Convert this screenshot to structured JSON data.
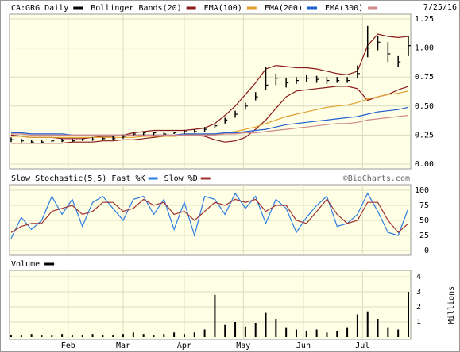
{
  "chart_data": [
    {
      "type": "ohlc",
      "title": "CA:GRG Daily",
      "date": "7/25/16",
      "color": "#000000",
      "high": [
        0.23,
        0.22,
        0.21,
        0.21,
        0.21,
        0.22,
        0.22,
        0.22,
        0.23,
        0.23,
        0.24,
        0.25,
        0.27,
        0.28,
        0.28,
        0.28,
        0.28,
        0.29,
        0.3,
        0.32,
        0.35,
        0.4,
        0.46,
        0.53,
        0.62,
        0.84,
        0.78,
        0.74,
        0.75,
        0.77,
        0.76,
        0.75,
        0.75,
        0.75,
        0.85,
        1.19,
        1.1,
        1.05,
        0.93,
        1.1
      ],
      "low": [
        0.19,
        0.18,
        0.18,
        0.18,
        0.19,
        0.19,
        0.19,
        0.2,
        0.2,
        0.21,
        0.21,
        0.22,
        0.24,
        0.25,
        0.25,
        0.25,
        0.26,
        0.26,
        0.27,
        0.28,
        0.31,
        0.35,
        0.4,
        0.47,
        0.55,
        0.64,
        0.68,
        0.66,
        0.69,
        0.71,
        0.7,
        0.69,
        0.7,
        0.7,
        0.74,
        0.92,
        0.98,
        0.88,
        0.84,
        0.93
      ],
      "close": [
        0.21,
        0.2,
        0.19,
        0.19,
        0.2,
        0.2,
        0.2,
        0.21,
        0.21,
        0.22,
        0.22,
        0.24,
        0.26,
        0.27,
        0.27,
        0.26,
        0.27,
        0.28,
        0.28,
        0.3,
        0.33,
        0.38,
        0.43,
        0.5,
        0.58,
        0.68,
        0.74,
        0.7,
        0.72,
        0.74,
        0.73,
        0.72,
        0.72,
        0.72,
        0.78,
        1.0,
        1.05,
        0.95,
        0.88,
        1.02
      ],
      "bands": {
        "name": "Bollinger Bands(20)",
        "color": "#8b1a1a",
        "upper": [
          0.25,
          0.24,
          0.23,
          0.23,
          0.23,
          0.22,
          0.22,
          0.22,
          0.23,
          0.24,
          0.24,
          0.25,
          0.27,
          0.28,
          0.29,
          0.29,
          0.29,
          0.29,
          0.3,
          0.31,
          0.35,
          0.42,
          0.5,
          0.6,
          0.7,
          0.82,
          0.85,
          0.84,
          0.83,
          0.83,
          0.82,
          0.8,
          0.78,
          0.77,
          0.8,
          1.02,
          1.12,
          1.1,
          1.09,
          1.1
        ],
        "lower": [
          0.18,
          0.18,
          0.18,
          0.18,
          0.18,
          0.18,
          0.19,
          0.19,
          0.19,
          0.2,
          0.2,
          0.21,
          0.21,
          0.22,
          0.23,
          0.24,
          0.24,
          0.25,
          0.25,
          0.24,
          0.21,
          0.19,
          0.2,
          0.23,
          0.3,
          0.38,
          0.48,
          0.58,
          0.63,
          0.64,
          0.65,
          0.66,
          0.67,
          0.67,
          0.65,
          0.55,
          0.58,
          0.6,
          0.64,
          0.67
        ]
      },
      "series": [
        {
          "name": "EMA(100)",
          "color": "#e0a030",
          "values": [
            0.24,
            0.24,
            0.23,
            0.23,
            0.23,
            0.23,
            0.23,
            0.23,
            0.23,
            0.23,
            0.23,
            0.23,
            0.23,
            0.24,
            0.24,
            0.24,
            0.24,
            0.25,
            0.25,
            0.25,
            0.26,
            0.27,
            0.28,
            0.3,
            0.32,
            0.35,
            0.38,
            0.41,
            0.43,
            0.45,
            0.47,
            0.49,
            0.5,
            0.51,
            0.53,
            0.56,
            0.58,
            0.6,
            0.61,
            0.63
          ]
        },
        {
          "name": "EMA(200)",
          "color": "#2060d0",
          "values": [
            0.27,
            0.27,
            0.26,
            0.26,
            0.26,
            0.26,
            0.25,
            0.25,
            0.25,
            0.25,
            0.25,
            0.25,
            0.25,
            0.25,
            0.25,
            0.25,
            0.25,
            0.26,
            0.26,
            0.26,
            0.26,
            0.27,
            0.27,
            0.28,
            0.29,
            0.3,
            0.32,
            0.34,
            0.35,
            0.36,
            0.37,
            0.38,
            0.39,
            0.4,
            0.41,
            0.43,
            0.45,
            0.46,
            0.47,
            0.49
          ]
        },
        {
          "name": "EMA(300)",
          "color": "#d08888",
          "values": [
            0.26,
            0.26,
            0.25,
            0.25,
            0.25,
            0.25,
            0.25,
            0.25,
            0.25,
            0.25,
            0.25,
            0.25,
            0.25,
            0.25,
            0.25,
            0.25,
            0.25,
            0.25,
            0.25,
            0.25,
            0.25,
            0.26,
            0.26,
            0.27,
            0.27,
            0.28,
            0.29,
            0.3,
            0.31,
            0.32,
            0.33,
            0.34,
            0.35,
            0.35,
            0.36,
            0.38,
            0.39,
            0.4,
            0.41,
            0.42
          ]
        }
      ],
      "ylim": [
        0,
        1.25
      ],
      "yticks": [
        {
          "value": 0,
          "label": "0.00"
        },
        {
          "value": 0.25,
          "label": "0.25"
        },
        {
          "value": 0.5,
          "label": "0.50"
        },
        {
          "value": 0.75,
          "label": "0.75"
        },
        {
          "value": 1,
          "label": "1.00"
        },
        {
          "value": 1.25,
          "label": "1.25"
        }
      ],
      "grid": true
    },
    {
      "type": "line",
      "title": "Slow Stochastic(5,5)",
      "watermark": "©BigCharts.com",
      "series": [
        {
          "name": "Fast %K",
          "color": "#2a7de1",
          "values": [
            20,
            55,
            35,
            50,
            90,
            60,
            85,
            40,
            80,
            90,
            70,
            50,
            85,
            90,
            60,
            85,
            35,
            80,
            25,
            90,
            85,
            60,
            95,
            70,
            90,
            45,
            85,
            70,
            30,
            55,
            75,
            90,
            40,
            45,
            60,
            95,
            65,
            30,
            25,
            70
          ]
        },
        {
          "name": "Slow %D",
          "color": "#a03030",
          "values": [
            30,
            40,
            45,
            45,
            65,
            70,
            75,
            60,
            65,
            80,
            80,
            65,
            70,
            85,
            75,
            80,
            60,
            65,
            50,
            65,
            80,
            75,
            85,
            80,
            85,
            65,
            75,
            75,
            50,
            45,
            65,
            85,
            60,
            45,
            50,
            80,
            80,
            50,
            30,
            45
          ]
        }
      ],
      "ylim": [
        0,
        100
      ],
      "yticks": [
        0,
        25,
        50,
        75,
        100
      ],
      "grid": true
    },
    {
      "type": "bar",
      "title": "Volume",
      "color": "#000000",
      "ylabel": "Millions",
      "values": [
        0.1,
        0.1,
        0.2,
        0.1,
        0.1,
        0.2,
        0.1,
        0.1,
        0.2,
        0.1,
        0.1,
        0.2,
        0.3,
        0.2,
        0.1,
        0.2,
        0.3,
        0.2,
        0.3,
        0.5,
        2.8,
        0.8,
        1.0,
        0.7,
        0.9,
        1.6,
        1.2,
        0.6,
        0.5,
        0.4,
        0.5,
        0.3,
        0.4,
        0.6,
        1.5,
        1.7,
        1.2,
        0.6,
        0.5,
        3.0
      ],
      "ylim": [
        0,
        4
      ],
      "yticks": [
        1,
        2,
        3,
        4
      ],
      "grid": true,
      "xticks": [
        {
          "value": 5.6,
          "label": "Feb"
        },
        {
          "value": 11,
          "label": "Mar"
        },
        {
          "value": 17,
          "label": "Apr"
        },
        {
          "value": 22.8,
          "label": "May"
        },
        {
          "value": 28.7,
          "label": "Jun"
        },
        {
          "value": 34.5,
          "label": "Jul"
        }
      ]
    }
  ]
}
